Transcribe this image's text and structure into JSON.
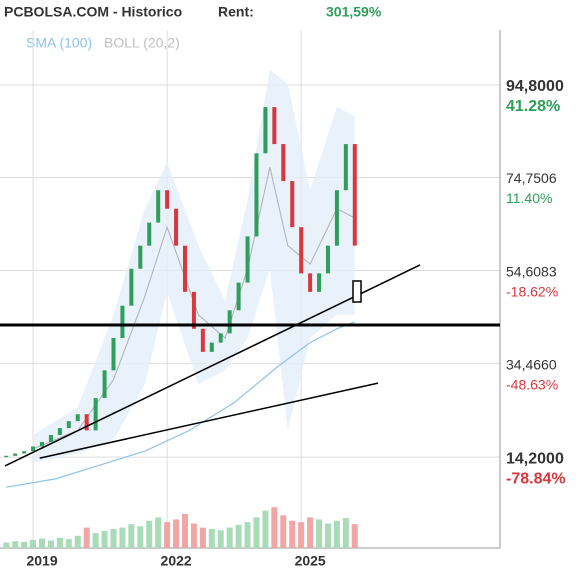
{
  "header": {
    "site": "PCBOLSA.COM - Historico",
    "rent_label": "Rent:",
    "rent_value": "301,59%"
  },
  "chart_data": {
    "type": "candlestick",
    "legend": [
      "SMA (100)",
      "BOLL (20,2)"
    ],
    "xlim": [
      2018.26,
      2029.45
    ],
    "xticks": [
      2019,
      2022,
      2025
    ],
    "ylim": [
      -5.47,
      106.7
    ],
    "yticks": [
      {
        "value": 94.8,
        "label": "94,8000"
      },
      {
        "value": 74.7506,
        "label": "74,7506"
      },
      {
        "value": 54.6083,
        "label": "54,6083"
      },
      {
        "value": 34.466,
        "label": "34,4660"
      },
      {
        "value": 14.2,
        "label": "14,2000"
      }
    ],
    "ytick_changes": [
      "41.28%",
      "11.40%",
      "-18.62%",
      "-48.63%",
      "-78.84%"
    ],
    "grid": true,
    "up_color": "#2e9e5b",
    "down_color": "#d9363e",
    "x": [
      2018.4,
      2018.6,
      2018.8,
      2019.0,
      2019.2,
      2019.4,
      2019.6,
      2019.8,
      2020.0,
      2020.2,
      2020.4,
      2020.6,
      2020.8,
      2021.0,
      2021.2,
      2021.4,
      2021.6,
      2021.8,
      2022.0,
      2022.2,
      2022.4,
      2022.6,
      2022.8,
      2023.0,
      2023.2,
      2023.4,
      2023.6,
      2023.8,
      2024.0,
      2024.2,
      2024.4,
      2024.6,
      2024.8,
      2025.0,
      2025.2,
      2025.4,
      2025.6,
      2025.8,
      2026.0,
      2026.2
    ],
    "open": [
      14.2,
      14.5,
      15.0,
      15.5,
      16.5,
      17.5,
      19.0,
      20.5,
      22.0,
      23.5,
      20.0,
      27.0,
      33.0,
      40.0,
      47.0,
      55.0,
      60.0,
      65.0,
      72.0,
      68.0,
      60.0,
      50.0,
      42.0,
      37.0,
      39.0,
      41.0,
      46.0,
      52.0,
      62.0,
      80.0,
      90.0,
      82.0,
      74.0,
      64.0,
      54.0,
      50.0,
      54.0,
      60.0,
      72.0,
      82.0
    ],
    "close": [
      14.5,
      15.0,
      15.5,
      16.5,
      17.5,
      19.0,
      20.5,
      22.0,
      23.5,
      20.0,
      27.0,
      33.0,
      40.0,
      47.0,
      55.0,
      60.0,
      65.0,
      72.0,
      68.0,
      60.0,
      50.0,
      42.0,
      37.0,
      39.0,
      41.0,
      46.0,
      52.0,
      62.0,
      80.0,
      90.0,
      82.0,
      74.0,
      64.0,
      54.0,
      50.0,
      54.0,
      60.0,
      72.0,
      82.0,
      60.0
    ],
    "volume": [
      8,
      10,
      9,
      12,
      14,
      11,
      15,
      13,
      18,
      30,
      22,
      25,
      28,
      30,
      35,
      32,
      40,
      45,
      38,
      42,
      50,
      36,
      30,
      28,
      26,
      30,
      34,
      38,
      45,
      55,
      60,
      48,
      40,
      38,
      45,
      42,
      36,
      40,
      44,
      35
    ],
    "vlim": [
      0,
      100
    ],
    "sma": {
      "name": "SMA (100)",
      "color": "#8ec3ea",
      "x": [
        2018.4,
        2019.5,
        2020.5,
        2021.5,
        2022.5,
        2023.5,
        2024.5,
        2025.2,
        2025.8,
        2026.2
      ],
      "values": [
        7.7,
        9.5,
        12.5,
        15.5,
        20,
        26,
        34,
        39,
        42,
        43.5
      ]
    },
    "boll": {
      "name": "BOLL (20,2)",
      "color": "#b0b0b0",
      "x": [
        2019.0,
        2020.0,
        2020.8,
        2021.5,
        2022.0,
        2022.7,
        2023.3,
        2023.8,
        2024.3,
        2024.7,
        2025.2,
        2025.8,
        2026.2
      ],
      "upper": [
        19,
        25,
        45,
        68,
        78,
        60,
        48,
        70,
        98,
        95,
        72,
        90,
        88
      ],
      "middle": [
        16,
        20,
        31,
        49,
        64,
        45,
        40,
        55,
        77,
        60,
        56,
        68,
        66
      ],
      "lower": [
        13,
        15,
        18,
        30,
        50,
        30,
        33,
        40,
        55,
        20,
        40,
        45,
        45
      ]
    },
    "hline": 42.83,
    "trendlines": [
      {
        "x": [
          2018.37,
          2027.66
        ],
        "y": [
          12.29,
          55.82
        ]
      },
      {
        "x": [
          2019.15,
          2026.72
        ],
        "y": [
          13.99,
          30.24
        ]
      }
    ],
    "marker": {
      "x": 2026.25,
      "y": [
        47.8,
        52.35
      ]
    }
  }
}
